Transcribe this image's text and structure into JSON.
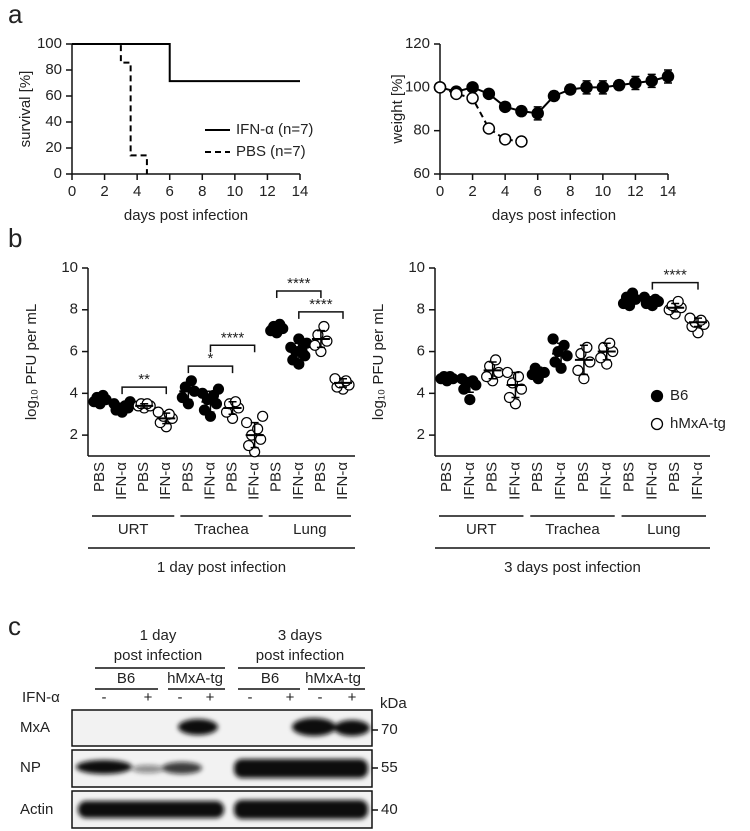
{
  "panel_labels": [
    "a",
    "b",
    "c"
  ],
  "chart_data": [
    {
      "type": "line",
      "ylabel": "survival [%]",
      "xlabel": "days post infection",
      "xlim": [
        0,
        14
      ],
      "xticks": [
        0,
        2,
        4,
        6,
        8,
        10,
        12,
        14
      ],
      "ylim": [
        0,
        100
      ],
      "yticks": [
        0,
        20,
        40,
        60,
        80,
        100
      ],
      "legend": "lower right",
      "series": [
        {
          "name": "IFN-α (n=7)",
          "color": "#000000",
          "dash": false,
          "marker": "none",
          "x": [
            0,
            6,
            6,
            14
          ],
          "values": [
            100,
            100,
            71.4,
            71.4
          ]
        },
        {
          "name": "PBS (n=7)",
          "color": "#000000",
          "dash": true,
          "marker": "none",
          "x": [
            0,
            3,
            3,
            3.6,
            3.6,
            4.6,
            4.6
          ],
          "values": [
            100,
            100,
            85.7,
            85.7,
            14.3,
            14.3,
            0
          ]
        }
      ]
    },
    {
      "type": "line",
      "ylabel": "weight [%]",
      "xlabel": "days post infection",
      "xlim": [
        0,
        14
      ],
      "xticks": [
        0,
        2,
        4,
        6,
        8,
        10,
        12,
        14
      ],
      "ylim": [
        60,
        120
      ],
      "yticks": [
        60,
        80,
        100,
        120
      ],
      "series": [
        {
          "color": "#000000",
          "dash": false,
          "marker": "filled",
          "x": [
            0,
            1,
            2,
            3,
            4,
            5,
            6,
            7,
            8,
            9,
            10,
            11,
            12,
            13,
            14
          ],
          "values": [
            100,
            98,
            100,
            97,
            91,
            89,
            88,
            96,
            99,
            100,
            100,
            101,
            102,
            103,
            105
          ],
          "errors": [
            1,
            1,
            1,
            1,
            1,
            2,
            3,
            2,
            2,
            3,
            3,
            2,
            3,
            3,
            3
          ]
        },
        {
          "color": "#000000",
          "dash": true,
          "marker": "open",
          "x": [
            0,
            1,
            2,
            3,
            4,
            5
          ],
          "values": [
            100,
            97,
            95,
            81,
            76,
            75
          ],
          "errors": [
            1,
            1,
            1,
            1,
            1,
            1
          ]
        }
      ]
    },
    {
      "type": "dotplot",
      "ylabel": "log₁₀ PFU per mL",
      "xlabel": "1 day post infection",
      "ylim": [
        1,
        10
      ],
      "yticks": [
        2,
        4,
        6,
        8,
        10
      ],
      "categories": [
        "PBS",
        "IFN-α",
        "PBS",
        "IFN-α",
        "PBS",
        "IFN-α",
        "PBS",
        "IFN-α",
        "PBS",
        "IFN-α",
        "PBS",
        "IFN-α"
      ],
      "groups": [
        "URT",
        "Trachea",
        "Lung"
      ],
      "series": [
        {
          "marker": "filled",
          "columns": [
            0,
            1,
            4,
            5,
            8,
            9
          ],
          "points": [
            [
              3.5,
              3.6,
              3.7,
              3.8,
              3.9
            ],
            [
              3.1,
              3.2,
              3.3,
              3.3,
              3.4,
              3.5,
              3.6
            ],
            [
              3.5,
              3.8,
              4.1,
              4.3,
              4.6
            ],
            [
              2.9,
              3.2,
              3.5,
              3.7,
              3.9,
              4.0,
              4.2
            ],
            [
              6.9,
              7.0,
              7.1,
              7.2,
              7.3
            ],
            [
              5.4,
              5.6,
              5.8,
              6.0,
              6.1,
              6.2,
              6.4,
              6.6
            ]
          ],
          "mean": [
            3.7,
            3.3,
            4.1,
            3.6,
            7.2,
            6.0
          ],
          "sd": [
            0.15,
            0.2,
            0.4,
            0.5,
            0.2,
            0.4
          ]
        },
        {
          "marker": "open",
          "columns": [
            2,
            3,
            6,
            7,
            10,
            11
          ],
          "points": [
            [
              3.3,
              3.4,
              3.4,
              3.5,
              3.5
            ],
            [
              2.4,
              2.6,
              2.8,
              2.9,
              3.0,
              3.1
            ],
            [
              2.8,
              3.1,
              3.3,
              3.5,
              3.6
            ],
            [
              1.2,
              1.5,
              1.8,
              2.0,
              2.3,
              2.6,
              2.9
            ],
            [
              6.0,
              6.3,
              6.5,
              6.8,
              7.2
            ],
            [
              4.2,
              4.3,
              4.4,
              4.5,
              4.6,
              4.7
            ]
          ],
          "mean": [
            3.4,
            2.8,
            3.3,
            2.0,
            6.6,
            4.5
          ],
          "sd": [
            0.1,
            0.25,
            0.3,
            0.6,
            0.4,
            0.2
          ]
        }
      ],
      "significance": [
        {
          "from": 1,
          "to": 3,
          "label": "**"
        },
        {
          "from": 4,
          "to": 6,
          "label": "*"
        },
        {
          "from": 5,
          "to": 7,
          "label": "****"
        },
        {
          "from": 9,
          "to": 11,
          "label": "****"
        },
        {
          "from": 8,
          "to": 10,
          "label": "****"
        }
      ]
    },
    {
      "type": "dotplot",
      "ylabel": "log₁₀ PFU per mL",
      "xlabel": "3 days post infection",
      "ylim": [
        1,
        10
      ],
      "yticks": [
        2,
        4,
        6,
        8,
        10
      ],
      "categories": [
        "PBS",
        "IFN-α",
        "PBS",
        "IFN-α",
        "PBS",
        "IFN-α",
        "PBS",
        "IFN-α",
        "PBS",
        "IFN-α",
        "PBS",
        "IFN-α"
      ],
      "groups": [
        "URT",
        "Trachea",
        "Lung"
      ],
      "legend": "right",
      "series": [
        {
          "name": "B6",
          "marker": "filled",
          "columns": [
            0,
            1,
            4,
            5,
            8,
            9
          ],
          "points": [
            [
              4.6,
              4.7,
              4.7,
              4.8,
              4.8
            ],
            [
              3.7,
              4.2,
              4.4,
              4.5,
              4.6,
              4.7
            ],
            [
              4.7,
              4.9,
              5.0,
              5.2
            ],
            [
              5.2,
              5.5,
              5.8,
              6.0,
              6.3,
              6.6
            ],
            [
              8.2,
              8.3,
              8.5,
              8.6,
              8.8
            ],
            [
              8.2,
              8.3,
              8.4,
              8.4,
              8.5,
              8.6
            ]
          ],
          "mean": [
            4.7,
            4.4,
            5.0,
            5.9,
            8.4,
            8.4
          ],
          "sd": [
            0.1,
            0.35,
            0.25,
            0.5,
            0.2,
            0.15
          ]
        },
        {
          "name": "hMxA-tg",
          "marker": "open",
          "columns": [
            2,
            3,
            6,
            7,
            10,
            11
          ],
          "points": [
            [
              4.6,
              4.8,
              5.0,
              5.3,
              5.6
            ],
            [
              3.5,
              3.8,
              4.2,
              4.5,
              4.8,
              5.0
            ],
            [
              4.7,
              5.1,
              5.5,
              5.9,
              6.2
            ],
            [
              5.4,
              5.7,
              6.0,
              6.2,
              6.4
            ],
            [
              7.8,
              8.0,
              8.1,
              8.2,
              8.4
            ],
            [
              6.9,
              7.2,
              7.3,
              7.4,
              7.5,
              7.6
            ]
          ],
          "mean": [
            5.1,
            4.4,
            5.6,
            6.0,
            8.1,
            7.4
          ],
          "sd": [
            0.4,
            0.6,
            0.7,
            0.4,
            0.2,
            0.2
          ]
        }
      ],
      "significance": [
        {
          "from": 9,
          "to": 11,
          "label": "****"
        }
      ]
    }
  ],
  "blot": {
    "conditions": [
      {
        "title": [
          "1 day",
          "post infection"
        ],
        "strains": [
          "B6",
          "hMxA-tg"
        ]
      },
      {
        "title": [
          "3 days",
          "post infection"
        ],
        "strains": [
          "B6",
          "hMxA-tg"
        ]
      }
    ],
    "treatment": "IFN-α",
    "signs": [
      "-",
      "+",
      "-",
      "+",
      "-",
      "+",
      "-",
      "+"
    ],
    "unit": "kDa",
    "rows": [
      {
        "label": "MxA",
        "marker": 70
      },
      {
        "label": "NP",
        "marker": 55
      },
      {
        "label": "Actin",
        "marker": 40
      }
    ]
  }
}
